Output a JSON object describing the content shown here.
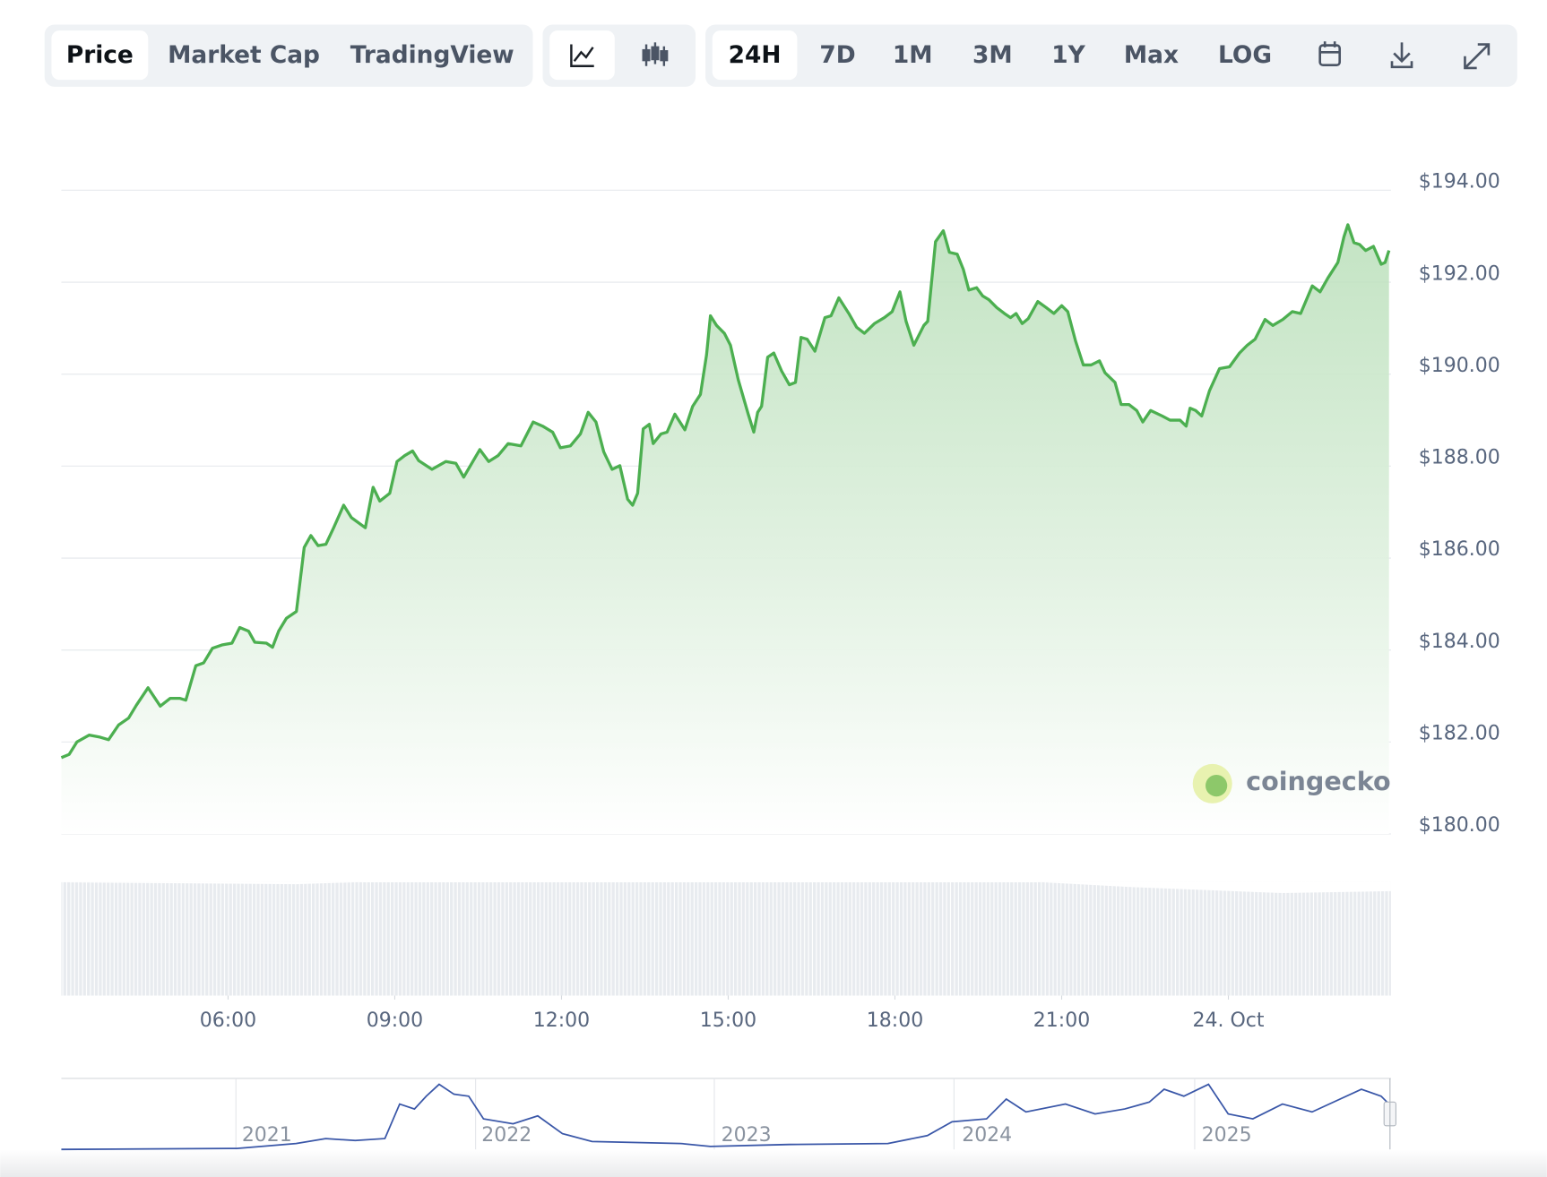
{
  "toolbar": {
    "views": [
      "Price",
      "Market Cap",
      "TradingView"
    ],
    "ranges": [
      "24H",
      "7D",
      "1M",
      "3M",
      "1Y",
      "Max",
      "LOG"
    ]
  },
  "watermark": "coingecko",
  "navigator": {
    "labels": [
      "2021",
      "2022",
      "2023",
      "2024",
      "2025"
    ]
  },
  "chart_data": {
    "type": "line",
    "x": [
      3.0,
      3.14,
      3.28,
      3.5,
      3.68,
      3.85,
      4.03,
      4.21,
      4.35,
      4.56,
      4.78,
      4.96,
      5.13,
      5.24,
      5.42,
      5.56,
      5.72,
      5.89,
      6.07,
      6.21,
      6.37,
      6.48,
      6.69,
      6.8,
      6.91,
      7.05,
      7.23,
      7.37,
      7.49,
      7.62,
      7.76,
      7.9,
      8.08,
      8.22,
      8.47,
      8.61,
      8.73,
      8.91,
      9.04,
      9.18,
      9.32,
      9.43,
      9.67,
      9.92,
      10.1,
      10.24,
      10.53,
      10.69,
      10.86,
      11.04,
      11.27,
      11.49,
      11.66,
      11.84,
      11.98,
      12.16,
      12.34,
      12.48,
      12.62,
      12.76,
      12.91,
      13.05,
      13.19,
      13.28,
      13.37,
      13.47,
      13.58,
      13.65,
      13.79,
      13.9,
      14.04,
      14.22,
      14.36,
      14.5,
      14.61,
      14.68,
      14.79,
      14.93,
      15.04,
      15.18,
      15.36,
      15.46,
      15.53,
      15.6,
      15.71,
      15.82,
      15.96,
      16.1,
      16.21,
      16.31,
      16.42,
      16.56,
      16.74,
      16.85,
      16.99,
      17.17,
      17.31,
      17.45,
      17.63,
      17.81,
      17.95,
      18.09,
      18.2,
      18.34,
      18.52,
      18.59,
      18.73,
      18.87,
      18.98,
      19.12,
      19.23,
      19.33,
      19.47,
      19.58,
      19.69,
      19.83,
      19.97,
      20.08,
      20.18,
      20.29,
      20.4,
      20.57,
      20.72,
      20.86,
      21.0,
      21.11,
      21.25,
      21.39,
      21.53,
      21.68,
      21.78,
      21.96,
      22.07,
      22.21,
      22.35,
      22.46,
      22.6,
      22.81,
      22.95,
      23.13,
      23.24,
      23.31,
      23.41,
      23.52,
      23.66,
      23.84,
      24.02,
      24.2,
      24.34,
      24.48,
      24.66,
      24.8,
      24.98,
      25.15,
      25.3,
      25.51,
      25.65,
      25.79,
      25.97,
      26.08,
      26.15,
      26.26,
      26.36,
      26.47,
      26.61,
      26.75,
      26.82,
      26.89
    ],
    "series": [
      {
        "color": "#4caf50",
        "values": [
          181.66,
          181.73,
          182.0,
          182.15,
          182.11,
          182.05,
          182.37,
          182.52,
          182.8,
          183.18,
          182.78,
          182.95,
          182.95,
          182.91,
          183.66,
          183.72,
          184.04,
          184.11,
          184.15,
          184.49,
          184.41,
          184.17,
          184.15,
          184.06,
          184.41,
          184.69,
          184.84,
          186.23,
          186.49,
          186.27,
          186.3,
          186.66,
          187.15,
          186.88,
          186.66,
          187.54,
          187.24,
          187.41,
          188.1,
          188.23,
          188.33,
          188.12,
          187.93,
          188.1,
          188.06,
          187.76,
          188.36,
          188.1,
          188.23,
          188.49,
          188.44,
          188.96,
          188.87,
          188.74,
          188.4,
          188.44,
          188.7,
          189.17,
          188.96,
          188.31,
          187.93,
          188.01,
          187.28,
          187.15,
          187.41,
          188.81,
          188.91,
          188.49,
          188.7,
          188.74,
          189.13,
          188.79,
          189.3,
          189.56,
          190.42,
          191.27,
          191.06,
          190.89,
          190.63,
          189.88,
          189.13,
          188.74,
          189.17,
          189.3,
          190.37,
          190.46,
          190.07,
          189.77,
          189.82,
          190.8,
          190.76,
          190.5,
          191.23,
          191.27,
          191.66,
          191.32,
          191.02,
          190.89,
          191.1,
          191.23,
          191.36,
          191.79,
          191.15,
          190.63,
          191.06,
          191.15,
          192.88,
          193.12,
          192.65,
          192.61,
          192.28,
          191.83,
          191.88,
          191.7,
          191.62,
          191.45,
          191.32,
          191.23,
          191.32,
          191.1,
          191.21,
          191.58,
          191.45,
          191.32,
          191.49,
          191.36,
          190.72,
          190.2,
          190.2,
          190.29,
          190.03,
          189.82,
          189.34,
          189.34,
          189.21,
          188.96,
          189.21,
          189.09,
          189.0,
          189.0,
          188.87,
          189.26,
          189.21,
          189.09,
          189.64,
          190.12,
          190.16,
          190.46,
          190.63,
          190.76,
          191.19,
          191.06,
          191.19,
          191.36,
          191.32,
          191.92,
          191.79,
          192.09,
          192.43,
          192.99,
          193.25,
          192.86,
          192.82,
          192.69,
          192.78,
          192.39,
          192.43,
          192.69
        ]
      }
    ],
    "xlim": [
      3.0,
      26.89
    ],
    "xticks": [
      {
        "value": 6,
        "label": "06:00"
      },
      {
        "value": 9,
        "label": "09:00"
      },
      {
        "value": 12,
        "label": "12:00"
      },
      {
        "value": 15,
        "label": "15:00"
      },
      {
        "value": 18,
        "label": "18:00"
      },
      {
        "value": 21,
        "label": "21:00"
      },
      {
        "value": 24,
        "label": "24. Oct"
      }
    ],
    "ylim": [
      180,
      194
    ],
    "yticks": [
      {
        "value": 194,
        "label": "$194.00"
      },
      {
        "value": 192,
        "label": "$192.00"
      },
      {
        "value": 190,
        "label": "$190.00"
      },
      {
        "value": 188,
        "label": "$188.00"
      },
      {
        "value": 186,
        "label": "$186.00"
      },
      {
        "value": 184,
        "label": "$184.00"
      },
      {
        "value": 182,
        "label": "$182.00"
      },
      {
        "value": 180,
        "label": "$180.00"
      }
    ],
    "grid": true
  }
}
